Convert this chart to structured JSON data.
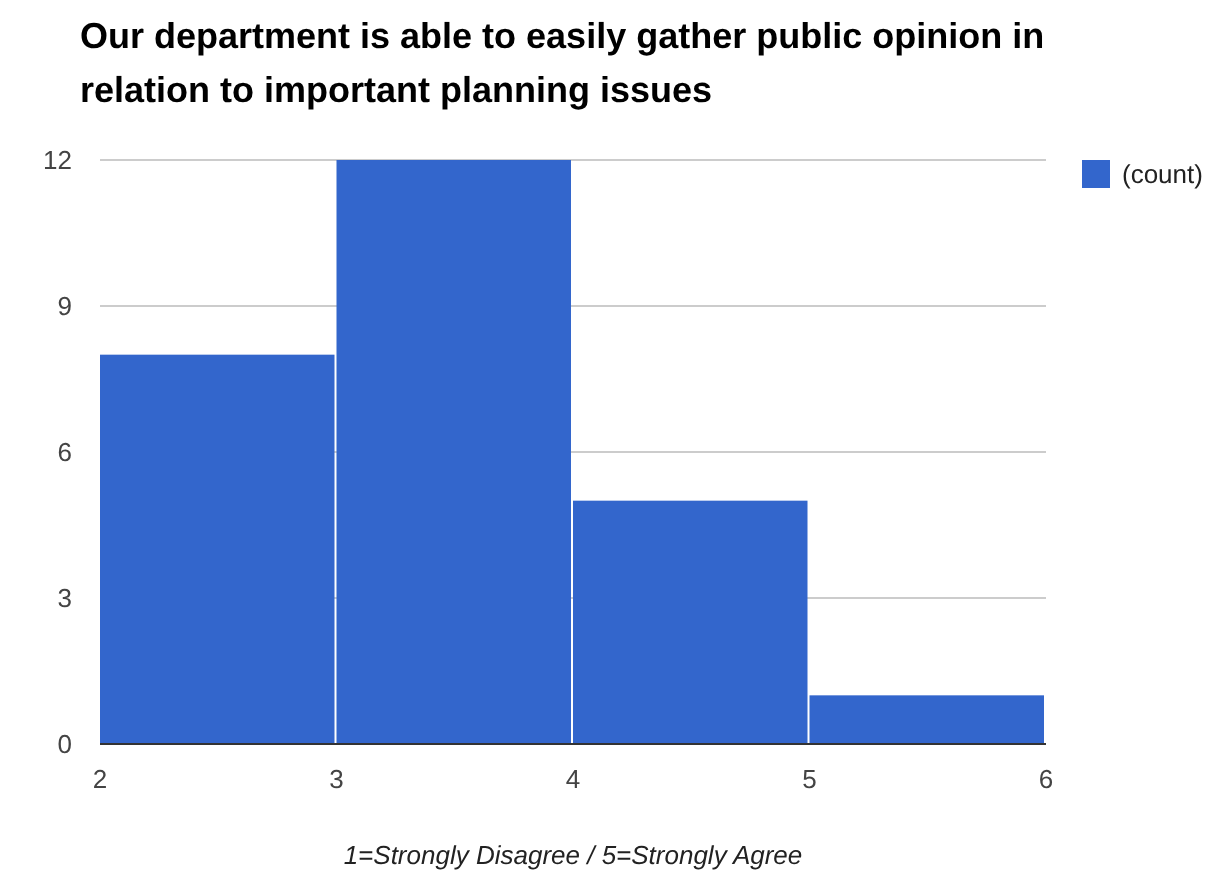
{
  "chart_data": {
    "type": "histogram",
    "title": "Our department is able to easily gather public opinion in relation to important planning issues",
    "xlabel": "1=Strongly Disagree / 5=Strongly Agree",
    "bins": [
      2,
      3,
      4,
      5,
      6
    ],
    "series": [
      {
        "name": "(count)",
        "color": "#3366cc",
        "values": [
          8,
          12,
          5,
          1
        ]
      }
    ],
    "xlim": [
      2,
      6
    ],
    "xticks": [
      2,
      3,
      4,
      5,
      6
    ],
    "ylim": [
      0,
      12
    ],
    "yticks": [
      0,
      3,
      6,
      9,
      12
    ],
    "grid": "y",
    "legend": "top right"
  }
}
